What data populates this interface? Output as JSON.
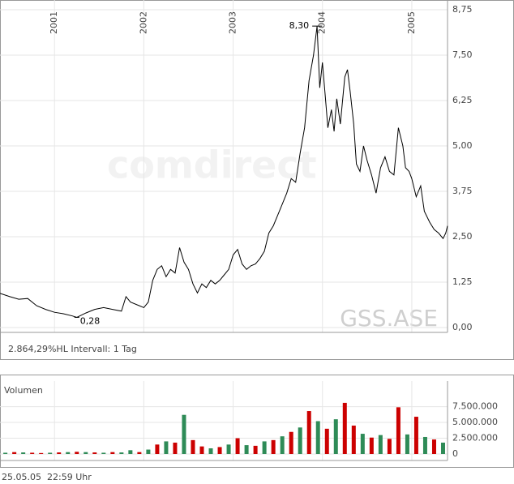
{
  "chart_data": [
    {
      "type": "line",
      "subtitle": "2.864,29%HL Intervall: 1 Tag",
      "watermark": "comdirect",
      "symbol": "GSS.ASE",
      "x": [
        2000.39,
        2000.5,
        2000.6,
        2000.7,
        2000.8,
        2000.9,
        2001.0,
        2001.1,
        2001.2,
        2001.25,
        2001.35,
        2001.45,
        2001.55,
        2001.65,
        2001.75,
        2001.8,
        2001.85,
        2001.95,
        2002.0,
        2002.05,
        2002.1,
        2002.15,
        2002.2,
        2002.25,
        2002.3,
        2002.35,
        2002.4,
        2002.45,
        2002.5,
        2002.55,
        2002.6,
        2002.65,
        2002.7,
        2002.75,
        2002.8,
        2002.85,
        2002.9,
        2002.95,
        2003.0,
        2003.05,
        2003.1,
        2003.15,
        2003.2,
        2003.25,
        2003.3,
        2003.35,
        2003.4,
        2003.45,
        2003.5,
        2003.55,
        2003.6,
        2003.65,
        2003.7,
        2003.75,
        2003.8,
        2003.85,
        2003.9,
        2003.94,
        2003.97,
        2004.0,
        2004.03,
        2004.06,
        2004.1,
        2004.13,
        2004.16,
        2004.2,
        2004.25,
        2004.28,
        2004.31,
        2004.35,
        2004.38,
        2004.42,
        2004.46,
        2004.5,
        2004.55,
        2004.6,
        2004.65,
        2004.7,
        2004.75,
        2004.8,
        2004.85,
        2004.9,
        2004.93,
        2004.97,
        2005.0,
        2005.05,
        2005.1,
        2005.14,
        2005.2,
        2005.25,
        2005.3,
        2005.35,
        2005.38,
        2005.4
      ],
      "series": [
        {
          "color": "#000000",
          "values": [
            0.94,
            0.85,
            0.78,
            0.8,
            0.6,
            0.5,
            0.42,
            0.38,
            0.32,
            0.28,
            0.4,
            0.5,
            0.55,
            0.5,
            0.45,
            0.85,
            0.7,
            0.6,
            0.55,
            0.7,
            1.3,
            1.6,
            1.7,
            1.4,
            1.6,
            1.5,
            2.2,
            1.8,
            1.6,
            1.2,
            0.95,
            1.2,
            1.1,
            1.3,
            1.2,
            1.3,
            1.45,
            1.6,
            2.0,
            2.15,
            1.75,
            1.6,
            1.7,
            1.75,
            1.9,
            2.1,
            2.6,
            2.8,
            3.1,
            3.4,
            3.7,
            4.1,
            4.0,
            4.8,
            5.5,
            6.8,
            7.5,
            8.3,
            6.6,
            7.3,
            6.4,
            5.5,
            6.0,
            5.4,
            6.3,
            5.6,
            6.9,
            7.1,
            6.5,
            5.6,
            4.5,
            4.3,
            5.0,
            4.6,
            4.2,
            3.7,
            4.4,
            4.7,
            4.3,
            4.2,
            5.5,
            5.0,
            4.4,
            4.3,
            4.1,
            3.6,
            3.9,
            3.2,
            2.9,
            2.7,
            2.6,
            2.45,
            2.6,
            2.8
          ]
        }
      ],
      "xlim": [
        2000.39,
        2005.4
      ],
      "xticks": [
        2001,
        2002,
        2003,
        2004,
        2005
      ],
      "ylim": [
        0,
        8.75
      ],
      "yticks": [
        {
          "value": 0,
          "label": "0,00"
        },
        {
          "value": 1.25,
          "label": "1,25"
        },
        {
          "value": 2.5,
          "label": "2,50"
        },
        {
          "value": 3.75,
          "label": "3,75"
        },
        {
          "value": 5,
          "label": "5,00"
        },
        {
          "value": 6.25,
          "label": "6,25"
        },
        {
          "value": 7.5,
          "label": "7,50"
        },
        {
          "value": 8.75,
          "label": "8,75"
        }
      ],
      "grid": true,
      "annotations": [
        {
          "x": 2001.25,
          "value": 0.28,
          "label": "0,28"
        },
        {
          "x": 2003.94,
          "value": 8.3,
          "label": "8,30"
        }
      ]
    },
    {
      "type": "bar",
      "title": "Volumen",
      "x": [
        2000.45,
        2000.55,
        2000.65,
        2000.75,
        2000.85,
        2000.95,
        2001.05,
        2001.15,
        2001.25,
        2001.35,
        2001.45,
        2001.55,
        2001.65,
        2001.75,
        2001.85,
        2001.95,
        2002.05,
        2002.15,
        2002.25,
        2002.35,
        2002.45,
        2002.55,
        2002.65,
        2002.75,
        2002.85,
        2002.95,
        2003.05,
        2003.15,
        2003.25,
        2003.35,
        2003.45,
        2003.55,
        2003.65,
        2003.75,
        2003.85,
        2003.95,
        2004.05,
        2004.15,
        2004.25,
        2004.35,
        2004.45,
        2004.55,
        2004.65,
        2004.75,
        2004.85,
        2004.95,
        2005.05,
        2005.15,
        2005.25,
        2005.35
      ],
      "values": [
        200000,
        300000,
        250000,
        200000,
        150000,
        200000,
        250000,
        300000,
        350000,
        300000,
        250000,
        200000,
        300000,
        250000,
        600000,
        300000,
        700000,
        1500000,
        2000000,
        1800000,
        6200000,
        2200000,
        1200000,
        900000,
        1100000,
        1500000,
        2500000,
        1400000,
        1300000,
        2000000,
        2200000,
        2800000,
        3500000,
        4200000,
        6800000,
        5200000,
        4000000,
        5500000,
        8100000,
        4500000,
        3200000,
        2600000,
        3000000,
        2400000,
        7400000,
        3100000,
        5900000,
        2700000,
        2300000,
        1800000
      ],
      "colors": [
        "#2e8b57",
        "#cc0000",
        "#2e8b57",
        "#cc0000",
        "#cc0000",
        "#2e8b57",
        "#cc0000",
        "#2e8b57",
        "#cc0000",
        "#2e8b57",
        "#cc0000",
        "#2e8b57",
        "#cc0000",
        "#2e8b57",
        "#2e8b57",
        "#cc0000",
        "#2e8b57",
        "#cc0000",
        "#2e8b57",
        "#cc0000",
        "#2e8b57",
        "#cc0000",
        "#cc0000",
        "#2e8b57",
        "#cc0000",
        "#2e8b57",
        "#cc0000",
        "#2e8b57",
        "#cc0000",
        "#2e8b57",
        "#cc0000",
        "#2e8b57",
        "#cc0000",
        "#2e8b57",
        "#cc0000",
        "#2e8b57",
        "#cc0000",
        "#2e8b57",
        "#cc0000",
        "#cc0000",
        "#2e8b57",
        "#cc0000",
        "#2e8b57",
        "#cc0000",
        "#cc0000",
        "#2e8b57",
        "#cc0000",
        "#2e8b57",
        "#cc0000",
        "#2e8b57"
      ],
      "xlim": [
        2000.39,
        2005.4
      ],
      "ylim": [
        0,
        9500000
      ],
      "yticks": [
        0,
        {
          "value": 2500000,
          "label": "2.500.000"
        },
        {
          "value": 5000000,
          "label": "5.000.000"
        },
        {
          "value": 7500000,
          "label": "7.500.000"
        }
      ]
    }
  ],
  "footer": {
    "date": "25.05.05",
    "time": "22:59 Uhr"
  }
}
